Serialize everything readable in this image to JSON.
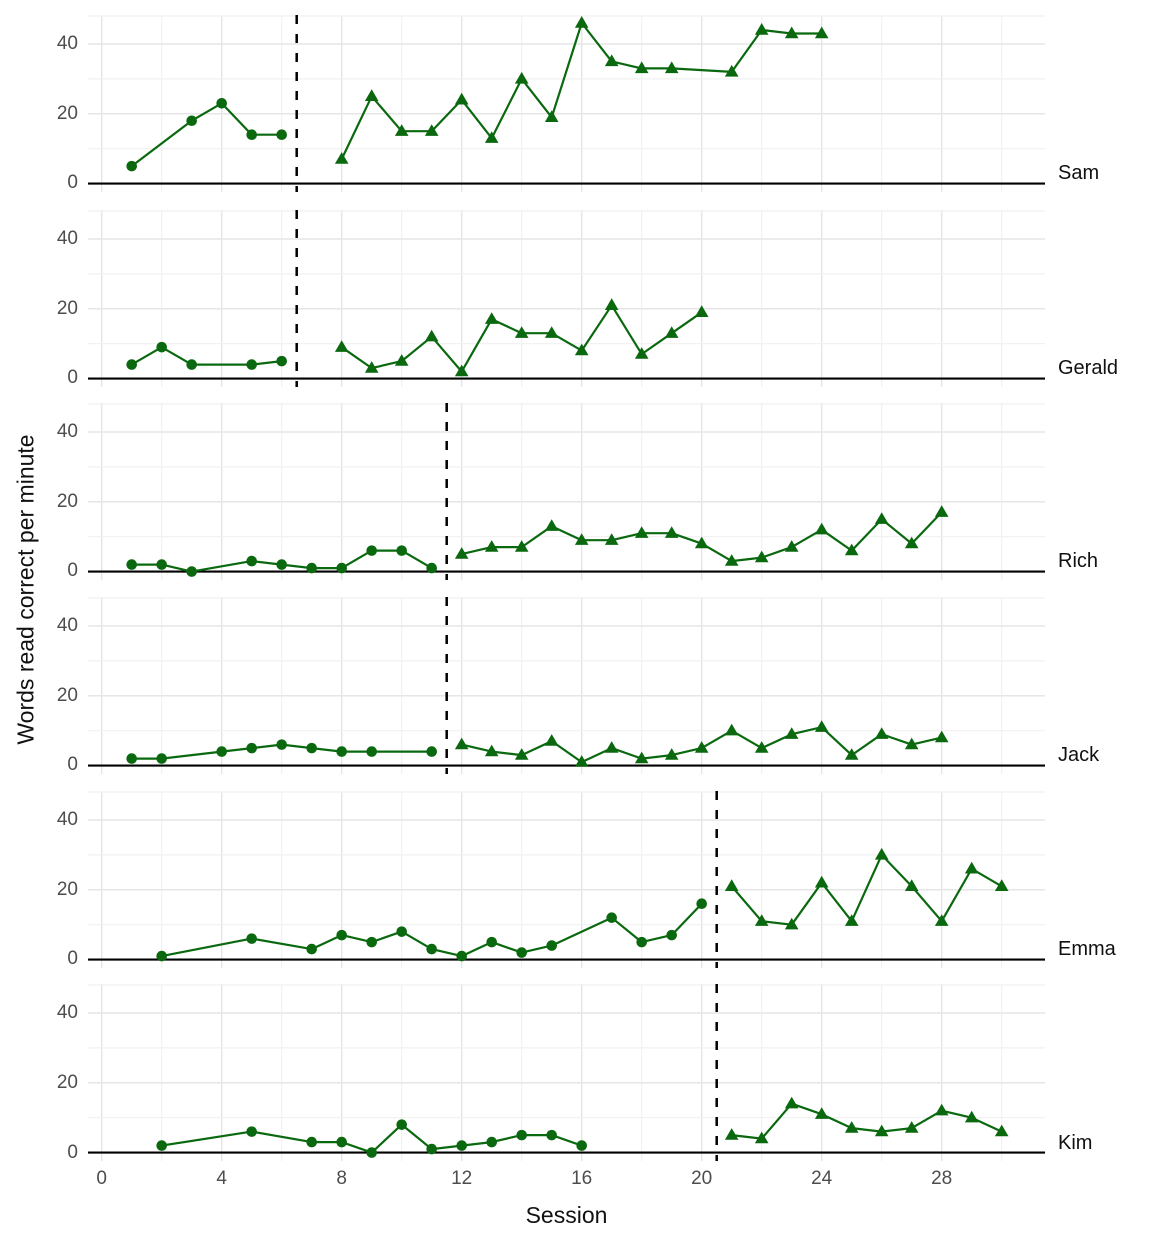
{
  "figure": {
    "kind": "multiple-baseline single-case design line chart",
    "x_axis_title": "Session",
    "y_axis_title": "Words read correct per minute"
  },
  "axis": {
    "x_label": "Session",
    "y_label": "Words read correct per minute",
    "x_ticks": [
      0,
      4,
      8,
      12,
      16,
      20,
      24,
      28
    ],
    "x_minor_ticks": [
      2,
      6,
      10,
      14,
      18,
      22,
      26,
      30
    ],
    "x_range": [
      -0.45,
      31.45
    ],
    "y_ticks": [
      0,
      20,
      40
    ],
    "y_minor_gridlines": [
      10,
      30
    ],
    "y_range": [
      -2.4,
      48.3
    ],
    "grid": "on"
  },
  "colors": {
    "series": "#0A690F",
    "phase_line": "#000000",
    "zero_line": "#000000",
    "grid_major": "#E6E6E6",
    "grid_minor": "#F1F1F1",
    "tick_label": "#4D4D4D",
    "title_text": "#111111"
  },
  "chart_data": [
    {
      "type": "line",
      "participant": "Sam",
      "phase_change_x": 6.5,
      "baseline": {
        "marker": "circle",
        "x": [
          1,
          3,
          4,
          5,
          6
        ],
        "y": [
          5,
          18,
          23,
          14,
          14
        ]
      },
      "intervention": {
        "marker": "triangle",
        "x": [
          8,
          9,
          10,
          11,
          12,
          13,
          14,
          15,
          16,
          17,
          18,
          19,
          21,
          22,
          23,
          24
        ],
        "y": [
          7,
          25,
          15,
          15,
          24,
          13,
          30,
          19,
          46,
          35,
          33,
          33,
          32,
          44,
          43,
          43
        ]
      }
    },
    {
      "type": "line",
      "participant": "Gerald",
      "phase_change_x": 6.5,
      "baseline": {
        "marker": "circle",
        "x": [
          1,
          2,
          3,
          5,
          6
        ],
        "y": [
          4,
          9,
          4,
          4,
          5
        ]
      },
      "intervention": {
        "marker": "triangle",
        "x": [
          8,
          9,
          10,
          11,
          12,
          13,
          14,
          15,
          16,
          17,
          18,
          19,
          20
        ],
        "y": [
          9,
          3,
          5,
          12,
          2,
          17,
          13,
          13,
          8,
          21,
          7,
          13,
          19
        ]
      }
    },
    {
      "type": "line",
      "participant": "Rich",
      "phase_change_x": 11.5,
      "baseline": {
        "marker": "circle",
        "x": [
          1,
          2,
          3,
          5,
          6,
          7,
          8,
          9,
          10,
          11
        ],
        "y": [
          2,
          2,
          0,
          3,
          2,
          1,
          1,
          6,
          6,
          1
        ]
      },
      "intervention": {
        "marker": "triangle",
        "x": [
          12,
          13,
          14,
          15,
          16,
          17,
          18,
          19,
          20,
          21,
          22,
          23,
          24,
          25,
          26,
          27,
          28
        ],
        "y": [
          5,
          7,
          7,
          13,
          9,
          9,
          11,
          11,
          8,
          3,
          4,
          7,
          12,
          6,
          15,
          8,
          17
        ]
      }
    },
    {
      "type": "line",
      "participant": "Jack",
      "phase_change_x": 11.5,
      "baseline": {
        "marker": "circle",
        "x": [
          1,
          2,
          4,
          5,
          6,
          7,
          8,
          9,
          11
        ],
        "y": [
          2,
          2,
          4,
          5,
          6,
          5,
          4,
          4,
          4
        ]
      },
      "intervention": {
        "marker": "triangle",
        "x": [
          12,
          13,
          14,
          15,
          16,
          17,
          18,
          19,
          20,
          21,
          22,
          23,
          24,
          25,
          26,
          27,
          28
        ],
        "y": [
          6,
          4,
          3,
          7,
          1,
          5,
          2,
          3,
          5,
          10,
          5,
          9,
          11,
          3,
          9,
          6,
          8
        ]
      }
    },
    {
      "type": "line",
      "participant": "Emma",
      "phase_change_x": 20.5,
      "baseline": {
        "marker": "circle",
        "x": [
          2,
          5,
          7,
          8,
          9,
          10,
          11,
          12,
          13,
          14,
          15,
          17,
          18,
          19,
          20
        ],
        "y": [
          1,
          6,
          3,
          7,
          5,
          8,
          3,
          1,
          5,
          2,
          4,
          12,
          5,
          7,
          16
        ]
      },
      "intervention": {
        "marker": "triangle",
        "x": [
          21,
          22,
          23,
          24,
          25,
          26,
          27,
          28,
          29,
          30
        ],
        "y": [
          21,
          11,
          10,
          22,
          11,
          30,
          21,
          11,
          26,
          21
        ]
      }
    },
    {
      "type": "line",
      "participant": "Kim",
      "phase_change_x": 20.5,
      "baseline": {
        "marker": "circle",
        "x": [
          2,
          5,
          7,
          8,
          9,
          10,
          11,
          12,
          13,
          14,
          15,
          16
        ],
        "y": [
          2,
          6,
          3,
          3,
          0,
          8,
          1,
          2,
          3,
          5,
          5,
          2
        ]
      },
      "intervention": {
        "marker": "triangle",
        "x": [
          21,
          22,
          23,
          24,
          25,
          26,
          27,
          28,
          29,
          30
        ],
        "y": [
          5,
          4,
          14,
          11,
          7,
          6,
          7,
          12,
          10,
          6
        ]
      }
    }
  ]
}
